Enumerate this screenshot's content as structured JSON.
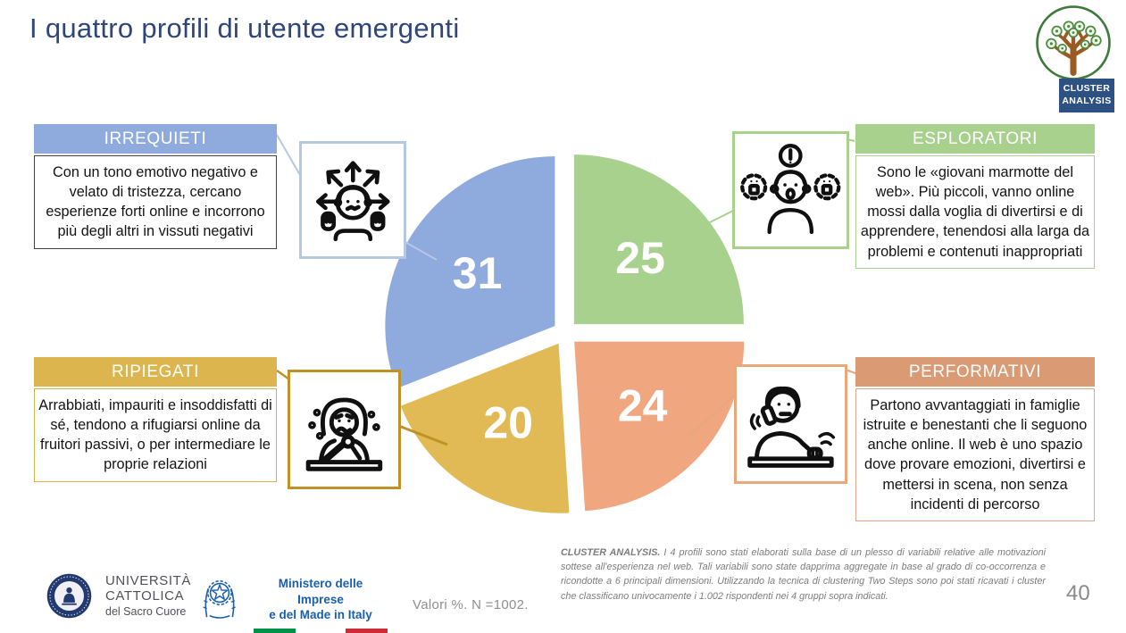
{
  "slide": {
    "title": "I quattro profili di utente emergenti",
    "page_number": "40",
    "sample_note": "Valori %. N =1002.",
    "badge": {
      "line1": "CLUSTER",
      "line2": "ANALYSIS"
    },
    "footnote": {
      "lead": "CLUSTER ANALYSIS.",
      "text": " I 4 profili sono stati elaborati sulla base di un plesso di variabili relative alle motivazioni sottese all'esperienza nel web. Tali variabili sono state dapprima aggregate in base al grado di co-occorrenza e ricondotte a 6 principali dimensioni. Utilizzando la tecnica di clustering Two Steps sono poi stati ricavati i cluster che classificano univocamente i 1.002 rispondenti nei 4 gruppi sopra indicati."
    }
  },
  "profiles": [
    {
      "name": "IRREQUIETI",
      "value": 31,
      "description": "Con un tono emotivo negativo e velato di tristezza, cercano esperienze forti online e incorrono più degli altri in vissuti negativi",
      "icon": "restless-arrows-person-icon",
      "colors": {
        "header": "#8FAADC",
        "body_border": "#404040",
        "icon_border": "#B4C7E7",
        "connector": "#B4C7E7",
        "slice": "#8FAADC"
      }
    },
    {
      "name": "ESPLORATORI",
      "value": 25,
      "description": "Sono le «giovani marmotte del web». Più piccoli, vanno online mossi dalla voglia di divertirsi e di apprendere, tenendosi alla larga da problemi e contenuti inappropriati",
      "icon": "alert-person-icon",
      "colors": {
        "header": "#A9D18E",
        "body_border": "#A9D18E",
        "icon_border": "#A9D18E",
        "connector": "#A9D18E",
        "slice": "#A9D18E"
      }
    },
    {
      "name": "RIPIEGATI",
      "value": 20,
      "description": "Arrabbiati, impauriti e insoddisfatti di sé, tendono a rifugiarsi online da fruitori passivi, o per intermediare le proprie relazioni",
      "icon": "crying-person-icon",
      "colors": {
        "header": "#DDB54E",
        "body_border": "#D8B04A",
        "icon_border": "#BF9226",
        "connector": "#BF9226",
        "slice": "#E2BA55"
      }
    },
    {
      "name": "PERFORMATIVI",
      "value": 24,
      "description": "Partono avvantaggiati in famiglie istruite e benestanti che li seguono anche online. Il web è uno spazio dove provare emozioni, divertirsi e mettersi in scena, non senza incidenti di percorso",
      "icon": "phone-call-person-icon",
      "colors": {
        "header": "#D99A74",
        "body_border": "#E0A687",
        "icon_border": "#E8A87C",
        "connector": "#E8A87C",
        "slice": "#F0A780"
      }
    }
  ],
  "chart_data": {
    "type": "pie",
    "title": "I quattro profili di utente emergenti",
    "unit": "Valori %",
    "sample": "N = 1002",
    "start_angle_deg": 0,
    "clockwise": true,
    "exploded": true,
    "segments": [
      {
        "label": "ESPLORATORI",
        "value": 25,
        "color": "#A9D18E"
      },
      {
        "label": "PERFORMATIVI",
        "value": 24,
        "color": "#F0A780"
      },
      {
        "label": "RIPIEGATI",
        "value": 20,
        "color": "#E2BA55"
      },
      {
        "label": "IRREQUIETI",
        "value": 31,
        "color": "#8FAADC"
      }
    ]
  },
  "footer": {
    "universita": {
      "line1": "UNIVERSITÀ",
      "line2": "CATTOLICA",
      "line3": "del Sacro Cuore"
    },
    "ministero": {
      "line1": "Ministero delle Imprese",
      "line2": "e del Made in Italy",
      "flag_green": "#009246",
      "flag_red": "#CE2B37"
    }
  }
}
